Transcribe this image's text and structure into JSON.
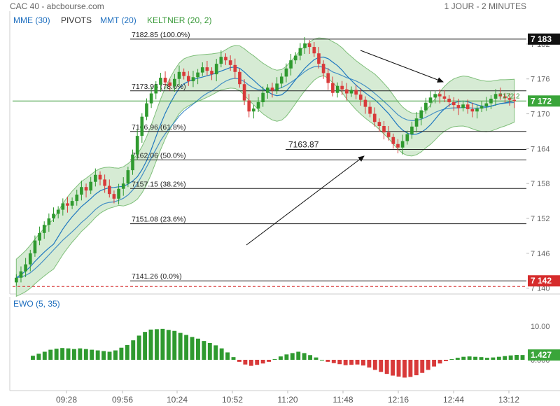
{
  "header": {
    "title": "CAC 40 - abcbourse.com",
    "timeframe": "1 JOUR - 2 MINUTES"
  },
  "legend": [
    {
      "label": "MME (30)",
      "color": "#1f6fbf"
    },
    {
      "label": "PIVOTS",
      "color": "#333333"
    },
    {
      "label": "MMT (20)",
      "color": "#1f6fbf"
    },
    {
      "label": "KELTNER (20, 2)",
      "color": "#3a9a3a"
    }
  ],
  "ewo_label": "EWO (5, 35)",
  "colors": {
    "up": "#2f9a2f",
    "down": "#d83a3a",
    "keltner_fill": "#cfe8cc",
    "keltner_line": "#7fbf7a",
    "ma": "#1f78c0",
    "price_badge": "#3aa53a",
    "low_badge": "#d62c2c"
  },
  "chart_data": [
    {
      "type": "candlestick",
      "title": "CAC 40",
      "x_ticks": [
        "09:28",
        "09:56",
        "10:24",
        "10:52",
        "11:20",
        "11:48",
        "12:16",
        "12:44",
        "13:12"
      ],
      "y_ticks": [
        "7 182",
        "7 176",
        "7 170",
        "7 164",
        "7 158",
        "7 152",
        "7 146",
        "7 140"
      ],
      "ylim": [
        7139,
        7185
      ],
      "price_badges": {
        "last": "7 172",
        "high": "7 183",
        "low": "7 142"
      },
      "fib_levels": [
        {
          "label": "7182.85  (100.0%)",
          "value": 7182.85
        },
        {
          "label": "7173.95  (78.6%)",
          "value": 7173.95
        },
        {
          "label": "7166.96  (61.8%)",
          "value": 7166.96
        },
        {
          "label": "7162.06  (50.0%)",
          "value": 7162.06
        },
        {
          "label": "7157.15  (38.2%)",
          "value": 7157.15
        },
        {
          "label": "7151.08  (23.6%)",
          "value": 7151.08
        },
        {
          "label": "7141.26  (0.0%)",
          "value": 7141.26
        }
      ],
      "annotations": [
        {
          "text": "7163.87",
          "value": 7163.87
        }
      ],
      "inline_value": "7172.2",
      "closes": [
        7141.8,
        7142.9,
        7144.1,
        7146.0,
        7148.2,
        7149.5,
        7150.9,
        7152.0,
        7152.8,
        7153.5,
        7154.6,
        7154.2,
        7155.0,
        7156.1,
        7157.4,
        7156.8,
        7158.3,
        7159.5,
        7158.7,
        7157.6,
        7156.2,
        7155.4,
        7157.1,
        7158.0,
        7160.3,
        7163.0,
        7166.2,
        7169.5,
        7171.8,
        7173.5,
        7175.0,
        7176.2,
        7175.4,
        7174.8,
        7176.0,
        7177.2,
        7176.5,
        7175.6,
        7176.3,
        7177.1,
        7178.0,
        7177.4,
        7176.8,
        7178.6,
        7179.8,
        7179.2,
        7178.4,
        7177.2,
        7175.1,
        7172.3,
        7170.4,
        7170.9,
        7172.0,
        7173.6,
        7174.5,
        7174.0,
        7175.2,
        7176.4,
        7177.8,
        7179.2,
        7180.0,
        7181.3,
        7182.1,
        7181.5,
        7180.4,
        7178.6,
        7177.0,
        7175.3,
        7173.6,
        7174.8,
        7174.2,
        7173.5,
        7174.1,
        7173.3,
        7172.4,
        7171.2,
        7170.0,
        7168.6,
        7167.9,
        7166.8,
        7166.0,
        7164.8,
        7164.2,
        7165.3,
        7166.5,
        7167.8,
        7169.2,
        7170.6,
        7171.9,
        7172.8,
        7173.4,
        7173.0,
        7172.6,
        7172.0,
        7171.5,
        7171.0,
        7171.6,
        7170.8,
        7170.4,
        7170.9,
        7171.3,
        7171.8,
        7172.6,
        7173.4,
        7173.0,
        7172.7,
        7172.4,
        7172.2
      ],
      "ewo": [
        1.2,
        1.8,
        2.4,
        3.0,
        3.3,
        3.5,
        3.4,
        3.2,
        3.4,
        3.2,
        3.0,
        2.8,
        2.6,
        2.4,
        2.8,
        3.6,
        4.4,
        5.8,
        7.2,
        8.3,
        9.0,
        9.1,
        9.2,
        8.9,
        8.6,
        8.0,
        7.4,
        6.8,
        6.3,
        5.6,
        5.0,
        4.3,
        3.4,
        2.2,
        0.8,
        -0.6,
        -1.4,
        -1.8,
        -1.5,
        -1.1,
        -0.6,
        0.2,
        1.0,
        1.6,
        2.0,
        2.4,
        2.0,
        1.4,
        0.7,
        0.0,
        -0.6,
        -1.0,
        -1.3,
        -1.6,
        -1.5,
        -1.4,
        -1.7,
        -2.3,
        -3.0,
        -3.6,
        -4.2,
        -4.7,
        -5.0,
        -5.3,
        -5.1,
        -4.6,
        -3.9,
        -3.0,
        -2.0,
        -1.1,
        -0.4,
        0.2,
        0.6,
        0.9,
        1.0,
        0.9,
        0.8,
        0.6,
        0.7,
        0.9,
        1.1,
        1.3,
        1.45,
        1.427
      ],
      "ewo_ticks": [
        "10.00",
        "0.000"
      ],
      "ewo_badge": "1.427"
    }
  ]
}
